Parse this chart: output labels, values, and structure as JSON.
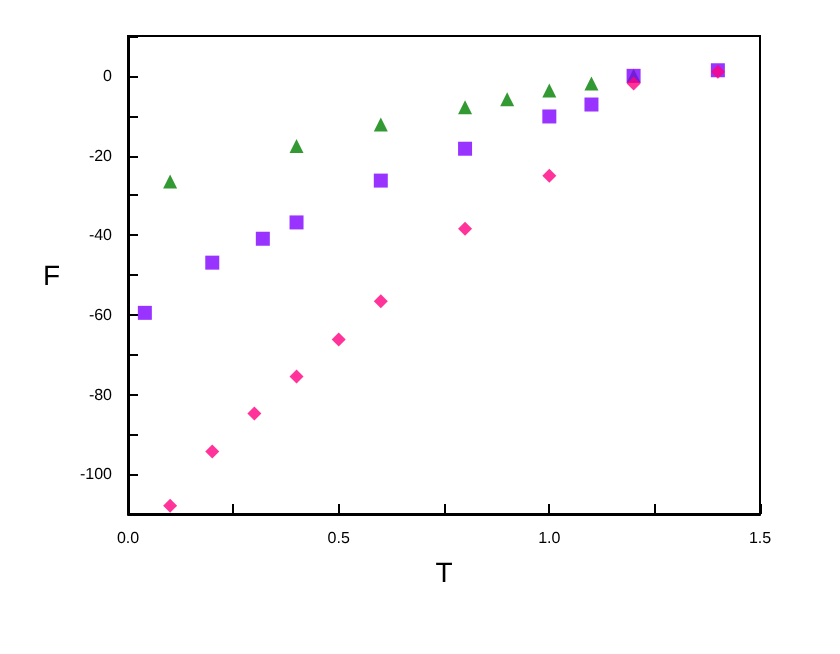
{
  "chart_data": {
    "type": "scatter",
    "xlabel": "T",
    "ylabel": "F",
    "xlim": [
      0,
      1.5
    ],
    "ylim": [
      -110,
      10
    ],
    "xticks": [
      {
        "value": 0,
        "label": "0.0"
      },
      {
        "value": 0.25,
        "label": null
      },
      {
        "value": 0.5,
        "label": "0.5"
      },
      {
        "value": 0.75,
        "label": null
      },
      {
        "value": 1,
        "label": "1.0"
      },
      {
        "value": 1.25,
        "label": null
      },
      {
        "value": 1.5,
        "label": "1.5"
      }
    ],
    "yticks": [
      {
        "value": -110,
        "label": null
      },
      -100,
      {
        "value": -90,
        "label": null
      },
      -80,
      {
        "value": -70,
        "label": null
      },
      -60,
      {
        "value": -50,
        "label": null
      },
      -40,
      {
        "value": -30,
        "label": null
      },
      -20,
      {
        "value": -10,
        "label": null
      },
      0,
      {
        "value": 10,
        "label": null
      }
    ],
    "series": [
      {
        "color": "#008000",
        "marker": "triangle",
        "x": [
          0.1,
          0.4,
          0.6,
          0.8,
          0.9,
          1.0,
          1.1,
          1.2
        ],
        "values": [
          -26.5,
          -17.6,
          -12.2,
          -7.9,
          -5.9,
          -3.7,
          -1.9,
          0
        ]
      },
      {
        "color": "#8000ff",
        "marker": "square",
        "x": [
          0.04,
          0.2,
          0.32,
          0.4,
          0.6,
          0.8,
          1.0,
          1.1,
          1.2,
          1.4
        ],
        "values": [
          -59.5,
          -46.9,
          -40.9,
          -36.8,
          -26.3,
          -18.3,
          -10.2,
          -7.2,
          0,
          1.4
        ]
      },
      {
        "color": "#ff0080",
        "marker": "diamond",
        "x": [
          0.1,
          0.2,
          0.3,
          0.4,
          0.5,
          0.6,
          0.8,
          1.0,
          1.2,
          1.4
        ],
        "values": [
          -107.9,
          -94.3,
          -84.8,
          -75.5,
          -66.2,
          -56.6,
          -38.4,
          -25.1,
          -1.9,
          1.0
        ]
      }
    ]
  }
}
